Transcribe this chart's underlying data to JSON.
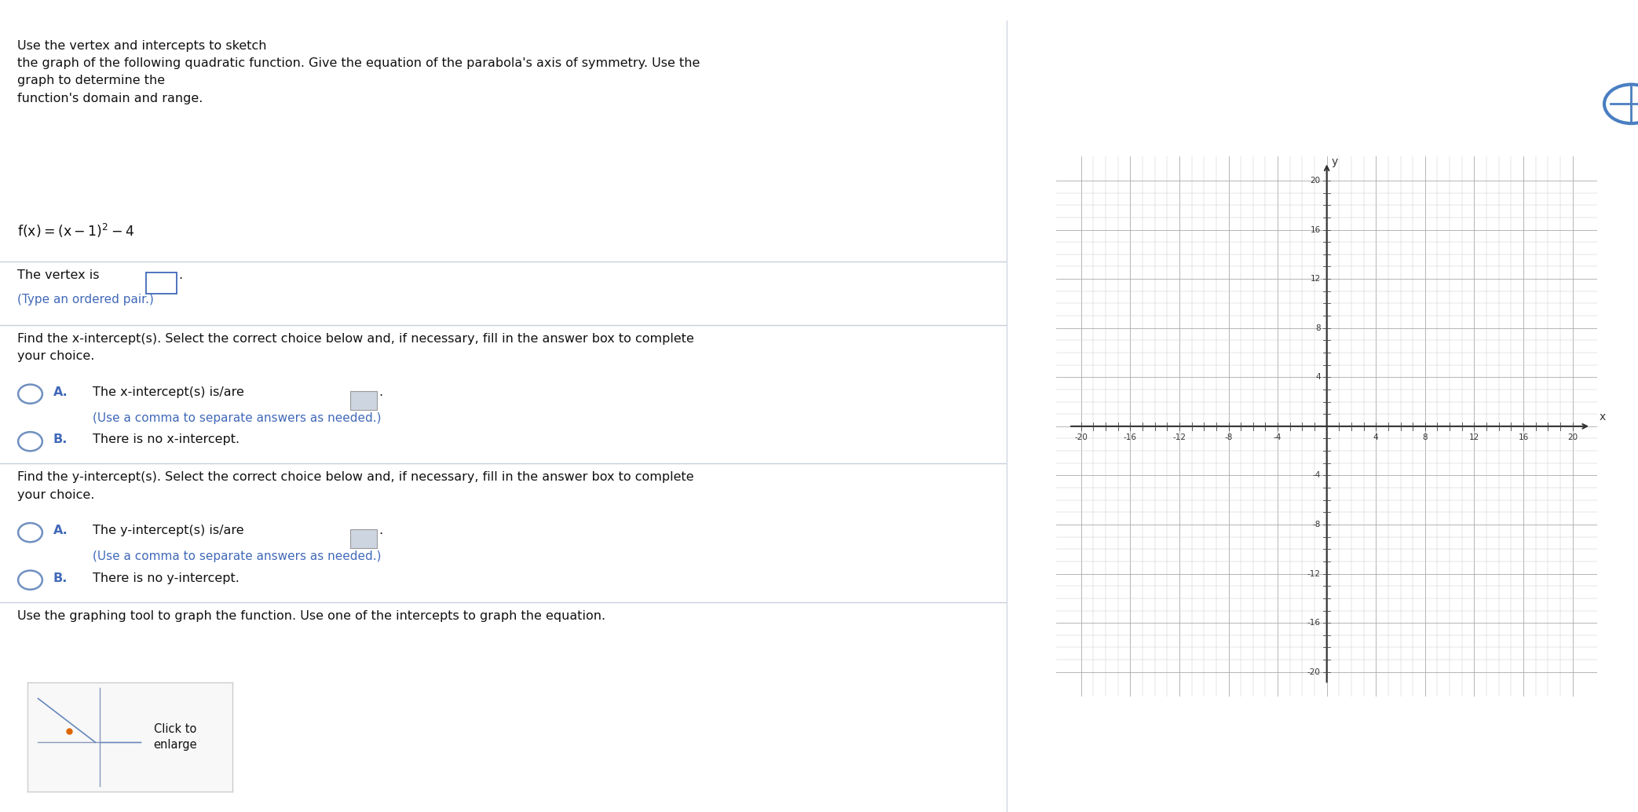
{
  "bg_color": "#ffffff",
  "divider_color": "#c8d0dc",
  "blue_color": "#4169b8",
  "blue_light": "#6090cc",
  "blue_radio": "#7090c0",
  "gray_box_color": "#cdd5e0",
  "text_color": "#111111",
  "graph": {
    "xlim": [
      -22,
      22
    ],
    "ylim": [
      -22,
      22
    ],
    "xtick_labels": [
      "-20",
      "-16",
      "-12",
      "-8",
      "-4",
      "4",
      "8",
      "12",
      "16",
      "20"
    ],
    "xtick_vals": [
      -20,
      -16,
      -12,
      -8,
      -4,
      4,
      8,
      12,
      16,
      20
    ],
    "ytick_labels": [
      "20",
      "16",
      "12",
      "8",
      "4",
      "-4",
      "-8",
      "-12",
      "-16",
      "-20"
    ],
    "ytick_vals": [
      20,
      16,
      12,
      8,
      4,
      -4,
      -8,
      -12,
      -16,
      -20
    ],
    "xlabel": "x",
    "ylabel": "y"
  },
  "title_text": "Use the vertex and intercepts to sketch\nthe graph of the following quadratic function. Give the equation of the parabola's axis of symmetry. Use the\ngraph to determine the\nfunction's domain and range.",
  "equation": "f(x) = (x – 1)² – 4",
  "vertex_label": "The vertex is",
  "vertex_hint": "(Type an ordered pair.)",
  "x_prompt": "Find the x-intercept(s). Select the correct choice below and, if necessary, fill in the answer box to complete\nyour choice.",
  "x_A_text": "The x-intercept(s) is/are",
  "x_A_hint": "(Use a comma to separate answers as needed.)",
  "x_B_text": "There is no x-intercept.",
  "y_prompt": "Find the y-intercept(s). Select the correct choice below and, if necessary, fill in the answer box to complete\nyour choice.",
  "y_A_text": "The y-intercept(s) is/are",
  "y_A_hint": "(Use a comma to separate answers as needed.)",
  "y_B_text": "There is no y-intercept.",
  "graph_tool_text": "Use the graphing tool to graph the function. Use one of the intercepts to graph the equation."
}
